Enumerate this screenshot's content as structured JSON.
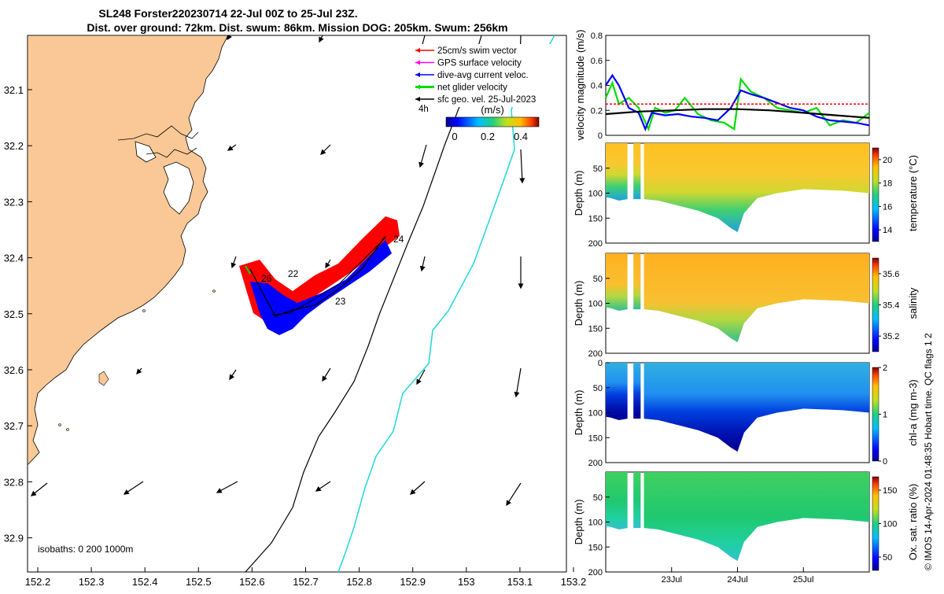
{
  "title": {
    "line1": "SL248 Forster220230714 22-Jul 00Z to 25-Jul 23Z.",
    "line2": "Dist. over ground: 72km. Dist. swum: 86km. Mission DOG: 205km. Swum: 256km"
  },
  "map": {
    "legend": [
      {
        "label": "25cm/s swim vector",
        "color": "#ff0000"
      },
      {
        "label": "GPS surface velocity",
        "color": "#ff00ff"
      },
      {
        "label": "dive-avg current veloc.",
        "color": "#0000ff"
      },
      {
        "label": "net glider velocity",
        "color": "#00dd00"
      },
      {
        "label": "sfc geo. vel. 25-Jul-2023",
        "color": "#000000"
      }
    ],
    "legend_extra": "4h",
    "colorbar_unit": "(m/s)",
    "colorbar_ticks": [
      "0",
      "0.2",
      "0.4"
    ],
    "isobaths_label": "isobaths: 0   200  1000m",
    "day_labels": [
      "24",
      "23",
      "26",
      "22"
    ],
    "x_ticks": [
      "152.2",
      "152.3",
      "152.4",
      "152.5",
      "152.6",
      "152.7",
      "152.8",
      "152.9",
      "153",
      "153.1",
      "153.2"
    ],
    "y_ticks": [
      "32.1",
      "32.2",
      "32.3",
      "32.4",
      "32.5",
      "32.6",
      "32.7",
      "32.8",
      "32.9"
    ]
  },
  "chart_data": [
    {
      "type": "line",
      "ylabel": "velocity magnitude (m/s)",
      "ylim": [
        0,
        0.8
      ],
      "y_ticks": [
        "0",
        "0.2",
        "0.4",
        "0.6",
        "0.8"
      ],
      "x_range_days": [
        22,
        26
      ],
      "series": [
        {
          "color": "#00dd00",
          "x": [
            22.0,
            22.1,
            22.2,
            22.35,
            22.5,
            22.65,
            22.75,
            22.9,
            23.05,
            23.2,
            23.4,
            23.6,
            23.8,
            23.95,
            24.05,
            24.2,
            24.4,
            24.6,
            24.8,
            25.0,
            25.2,
            25.4,
            25.6,
            25.8,
            26.0
          ],
          "y": [
            0.3,
            0.42,
            0.25,
            0.3,
            0.22,
            0.05,
            0.22,
            0.18,
            0.2,
            0.3,
            0.17,
            0.12,
            0.1,
            0.05,
            0.45,
            0.35,
            0.3,
            0.22,
            0.2,
            0.18,
            0.22,
            0.08,
            0.12,
            0.1,
            0.18
          ]
        },
        {
          "color": "#0000ff",
          "x": [
            22.0,
            22.1,
            22.2,
            22.35,
            22.5,
            22.6,
            22.7,
            22.9,
            23.1,
            23.3,
            23.5,
            23.7,
            23.9,
            24.05,
            24.2,
            24.4,
            24.6,
            24.8,
            25.0,
            25.2,
            25.4,
            25.6,
            25.8,
            26.0
          ],
          "y": [
            0.4,
            0.48,
            0.4,
            0.22,
            0.18,
            0.05,
            0.18,
            0.16,
            0.17,
            0.15,
            0.14,
            0.12,
            0.22,
            0.36,
            0.33,
            0.3,
            0.26,
            0.22,
            0.2,
            0.15,
            0.12,
            0.11,
            0.1,
            0.08
          ]
        },
        {
          "color": "#000000",
          "x": [
            22.0,
            22.5,
            23.0,
            23.5,
            24.0,
            24.5,
            25.0,
            25.5,
            26.0
          ],
          "y": [
            0.17,
            0.19,
            0.2,
            0.21,
            0.21,
            0.2,
            0.18,
            0.16,
            0.14
          ]
        },
        {
          "color": "#ff0000",
          "x": [
            22.0,
            26.0
          ],
          "y": [
            0.25,
            0.25
          ]
        }
      ]
    },
    {
      "type": "heatmap",
      "ylabel": "Depth (m)",
      "ylim": [
        200,
        0
      ],
      "y_ticks": [
        "50",
        "100",
        "150",
        "200"
      ],
      "colorbar_label": "temperature (°C)",
      "colorbar_ticks": [
        "14",
        "16",
        "18",
        "20"
      ],
      "colorbar_range": [
        13,
        21
      ]
    },
    {
      "type": "heatmap",
      "ylabel": "Depth (m)",
      "ylim": [
        200,
        0
      ],
      "y_ticks": [
        "50",
        "100",
        "150",
        "200"
      ],
      "colorbar_label": "salinity",
      "colorbar_ticks": [
        "35.2",
        "35.4",
        "35.6"
      ],
      "colorbar_range": [
        35.1,
        35.7
      ]
    },
    {
      "type": "heatmap",
      "ylabel": "Depth (m)",
      "ylim": [
        200,
        0
      ],
      "y_ticks": [
        "0",
        "50",
        "100",
        "150",
        "200"
      ],
      "colorbar_label": "chl-a (mg m-3)",
      "colorbar_ticks": [
        "0",
        "1",
        "2"
      ],
      "colorbar_range": [
        0,
        2
      ]
    },
    {
      "type": "heatmap",
      "ylabel": "Depth (m)",
      "ylim": [
        200,
        0
      ],
      "y_ticks": [
        "50",
        "100",
        "150",
        "200"
      ],
      "x_ticks": [
        "23Jul",
        "24Jul",
        "25Jul"
      ],
      "colorbar_label": "Ox. sat. ratio (%)",
      "colorbar_ticks": [
        "50",
        "100",
        "150"
      ],
      "colorbar_range": [
        30,
        170
      ]
    }
  ],
  "footer": "© IMOS 14-Apr-2024 01:48:35 Hobart time. QC flags 1  2"
}
